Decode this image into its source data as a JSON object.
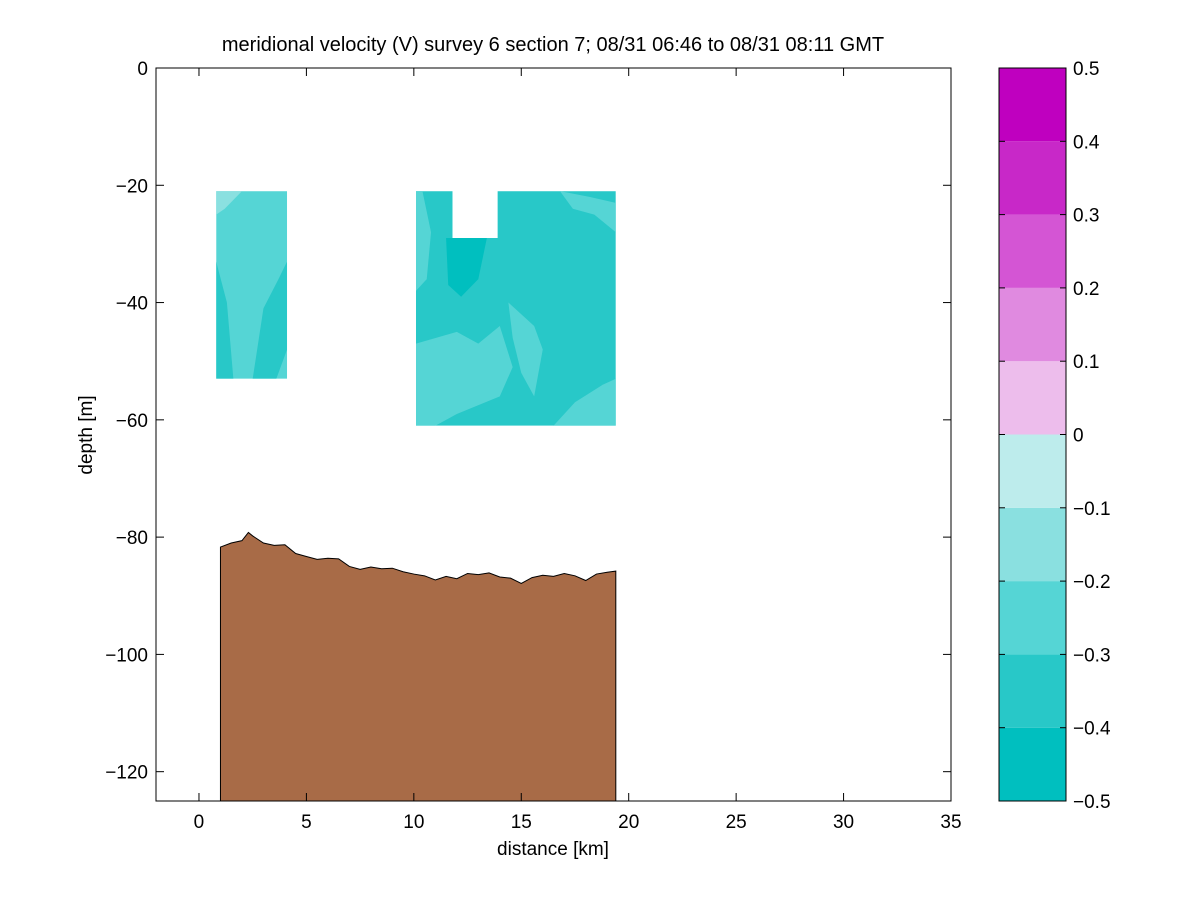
{
  "chart_data": {
    "type": "heatmap",
    "title": "meridional velocity (V) survey 6 section 7; 08/31 06:46 to 08/31 08:11 GMT",
    "xlabel": "distance [km]",
    "ylabel": "depth [m]",
    "xlim": [
      -2,
      35
    ],
    "ylim": [
      -125,
      0
    ],
    "x_ticks": [
      0,
      5,
      10,
      15,
      20,
      25,
      30,
      35
    ],
    "y_ticks": [
      0,
      -20,
      -40,
      -60,
      -80,
      -100,
      -120
    ],
    "grid": false,
    "colorbar": {
      "range": [
        -0.5,
        0.5
      ],
      "ticks": [
        0.5,
        0.4,
        0.3,
        0.2,
        0.1,
        0,
        -0.1,
        -0.2,
        -0.3,
        -0.4,
        -0.5
      ],
      "levels": [
        {
          "from": -0.5,
          "to": -0.4,
          "color": "#00bfbf"
        },
        {
          "from": -0.4,
          "to": -0.3,
          "color": "#28c8c8"
        },
        {
          "from": -0.3,
          "to": -0.2,
          "color": "#55d5d5"
        },
        {
          "from": -0.2,
          "to": -0.1,
          "color": "#8ae0e0"
        },
        {
          "from": -0.1,
          "to": 0.0,
          "color": "#bdecec"
        },
        {
          "from": 0.0,
          "to": 0.1,
          "color": "#edbdec"
        },
        {
          "from": 0.1,
          "to": 0.2,
          "color": "#e08ae0"
        },
        {
          "from": 0.2,
          "to": 0.3,
          "color": "#d455d4"
        },
        {
          "from": 0.3,
          "to": 0.4,
          "color": "#c828c8"
        },
        {
          "from": 0.4,
          "to": 0.5,
          "color": "#bf00bf"
        }
      ]
    },
    "seafloor_color": "#a86b47",
    "bathymetry": [
      [
        1.0,
        -81.7
      ],
      [
        1.5,
        -81.0
      ],
      [
        2.0,
        -80.6
      ],
      [
        2.3,
        -79.2
      ],
      [
        2.5,
        -79.8
      ],
      [
        3.0,
        -81.0
      ],
      [
        3.5,
        -81.4
      ],
      [
        4.0,
        -81.3
      ],
      [
        4.5,
        -82.8
      ],
      [
        5.0,
        -83.3
      ],
      [
        5.5,
        -83.8
      ],
      [
        6.0,
        -83.6
      ],
      [
        6.5,
        -83.7
      ],
      [
        7.0,
        -85.0
      ],
      [
        7.5,
        -85.5
      ],
      [
        8.0,
        -85.1
      ],
      [
        8.5,
        -85.4
      ],
      [
        9.0,
        -85.3
      ],
      [
        9.5,
        -85.9
      ],
      [
        10.0,
        -86.3
      ],
      [
        10.5,
        -86.6
      ],
      [
        11.0,
        -87.3
      ],
      [
        11.5,
        -86.7
      ],
      [
        12.0,
        -87.1
      ],
      [
        12.5,
        -86.2
      ],
      [
        13.0,
        -86.4
      ],
      [
        13.5,
        -86.1
      ],
      [
        14.0,
        -86.8
      ],
      [
        14.5,
        -87.0
      ],
      [
        15.0,
        -87.9
      ],
      [
        15.5,
        -86.9
      ],
      [
        16.0,
        -86.5
      ],
      [
        16.5,
        -86.7
      ],
      [
        17.0,
        -86.2
      ],
      [
        17.5,
        -86.6
      ],
      [
        18.0,
        -87.4
      ],
      [
        18.5,
        -86.3
      ],
      [
        19.0,
        -86.0
      ],
      [
        19.4,
        -85.8
      ]
    ],
    "regions": [
      {
        "name": "block-1",
        "x_range": [
          0.8,
          4.1
        ],
        "depth_range": [
          -53,
          -21
        ],
        "base_level": -0.25,
        "patches": [
          {
            "level": -0.35,
            "points": [
              [
                2.5,
                -53
              ],
              [
                3.0,
                -41
              ],
              [
                3.7,
                -36
              ],
              [
                4.1,
                -33
              ],
              [
                4.1,
                -48
              ],
              [
                3.6,
                -53
              ]
            ]
          },
          {
            "level": -0.35,
            "points": [
              [
                0.8,
                -33
              ],
              [
                1.3,
                -40
              ],
              [
                1.6,
                -53
              ],
              [
                0.8,
                -53
              ]
            ]
          },
          {
            "level": -0.15,
            "points": [
              [
                0.8,
                -21
              ],
              [
                2.0,
                -21
              ],
              [
                1.2,
                -24
              ],
              [
                0.8,
                -25
              ]
            ]
          }
        ]
      },
      {
        "name": "block-2",
        "x_range": [
          10.1,
          19.4
        ],
        "depth_range": [
          -61,
          -21
        ],
        "notch": {
          "x_range": [
            11.8,
            13.9
          ],
          "depth_range": [
            -29,
            -21
          ]
        },
        "base_level": -0.35,
        "patches": [
          {
            "level": -0.45,
            "points": [
              [
                11.5,
                -29
              ],
              [
                13.4,
                -29
              ],
              [
                13.0,
                -36
              ],
              [
                12.2,
                -39
              ],
              [
                11.6,
                -37
              ]
            ]
          },
          {
            "level": -0.25,
            "points": [
              [
                10.1,
                -21
              ],
              [
                10.4,
                -21
              ],
              [
                10.8,
                -28
              ],
              [
                10.6,
                -36
              ],
              [
                10.1,
                -38
              ]
            ]
          },
          {
            "level": -0.25,
            "points": [
              [
                10.1,
                -47
              ],
              [
                12.0,
                -45
              ],
              [
                13.0,
                -47
              ],
              [
                14.0,
                -44
              ],
              [
                14.6,
                -51
              ],
              [
                14.0,
                -56
              ],
              [
                12.0,
                -59
              ],
              [
                11.0,
                -61
              ],
              [
                10.1,
                -61
              ]
            ]
          },
          {
            "level": -0.25,
            "points": [
              [
                16.5,
                -61
              ],
              [
                17.5,
                -57
              ],
              [
                18.8,
                -54
              ],
              [
                19.4,
                -53
              ],
              [
                19.4,
                -61
              ]
            ]
          },
          {
            "level": -0.25,
            "points": [
              [
                14.4,
                -40
              ],
              [
                15.6,
                -44
              ],
              [
                16.0,
                -48
              ],
              [
                15.6,
                -56
              ],
              [
                15.0,
                -52
              ],
              [
                14.6,
                -46
              ]
            ]
          },
          {
            "level": -0.25,
            "points": [
              [
                16.8,
                -21
              ],
              [
                18.2,
                -22
              ],
              [
                19.4,
                -23
              ],
              [
                19.4,
                -28
              ],
              [
                18.4,
                -25
              ],
              [
                17.4,
                -24
              ]
            ]
          }
        ]
      }
    ]
  }
}
